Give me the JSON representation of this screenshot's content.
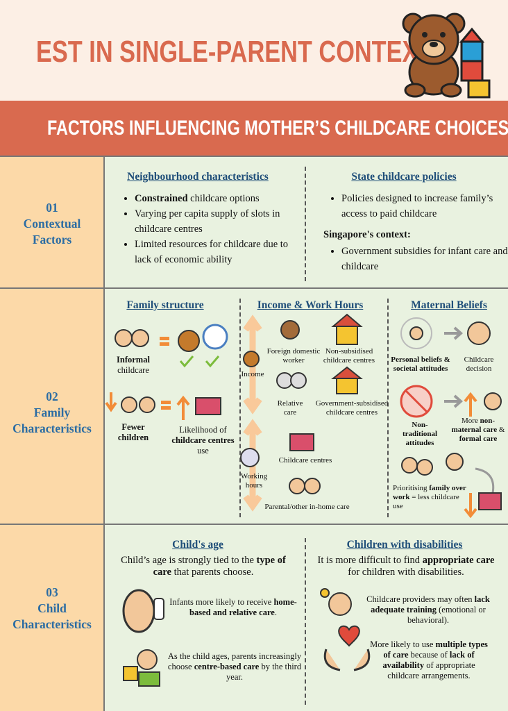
{
  "header": {
    "title": "EST IN SINGLE-PARENT CONTEXT"
  },
  "banner": {
    "title": "FACTORS INFLUENCING MOTHER’S CHILDCARE CHOICES"
  },
  "contextual": {
    "number": "01",
    "label": "Contextual Factors",
    "neighbourhood": {
      "heading": "Neighbourhood characteristics",
      "items": [
        [
          "Constrained",
          " childcare options"
        ],
        [
          "Varying per capita supply of slots in childcare centres"
        ],
        [
          "Limited resources for childcare due to lack of economic ability"
        ]
      ]
    },
    "state": {
      "heading": "State childcare policies",
      "items": [
        [
          "Policies designed to increase family’s access to paid childcare"
        ]
      ],
      "subheading": "Singapore's context:",
      "sub_items": [
        [
          "Government subsidies for infant care and childcare"
        ]
      ]
    }
  },
  "family": {
    "number": "02",
    "label": "Family Characteristics",
    "structure": {
      "heading": "Family structure",
      "informal": [
        "Informal",
        "childcare"
      ],
      "fewer": "Fewer children",
      "likelihood": [
        "Likelihood of ",
        "childcare centres",
        " use"
      ]
    },
    "income_work": {
      "heading": "Income & Work Hours",
      "foreign": "Foreign domestic worker",
      "non_subsidised": "Non-subsidised childcare centres",
      "income": "Income",
      "relative": "Relative care",
      "government": "Government-subsidised childcare centres",
      "centres": "Childcare centres",
      "working": "Working hours",
      "parental": "Parental/other in-home care"
    },
    "maternal": {
      "heading": "Maternal Beliefs",
      "personal": "Personal beliefs & societal attitudes",
      "decision": "Childcare decision",
      "non_traditional": "Non-traditional attitudes",
      "more": [
        "More ",
        "non-maternal care",
        " & ",
        "formal care"
      ],
      "prioritising": [
        "Prioritising ",
        "family over work",
        " = less childcare use"
      ]
    }
  },
  "child": {
    "number": "03",
    "label": "Child Characteristics",
    "age": {
      "heading": "Child's age",
      "intro": [
        "Child’s age is strongly tied to the ",
        "type of care",
        " that parents choose."
      ],
      "infants": [
        "Infants more likely to receive ",
        "home-based and relative care",
        "."
      ],
      "ages": [
        "As the child ages, parents increasingly choose ",
        "centre-based care",
        " by the third year."
      ]
    },
    "disabilities": {
      "heading": "Children with disabilities",
      "intro": [
        "It is more difficult to find ",
        "appropriate care",
        " for children with disabilities."
      ],
      "training": [
        "Childcare providers may often ",
        "lack adequate training",
        " (emotional or behavioral)."
      ],
      "multiple": [
        "More likely to use ",
        "multiple types of care",
        " because of ",
        "lack of availability",
        " of appropriate childcare arrangements."
      ]
    }
  }
}
